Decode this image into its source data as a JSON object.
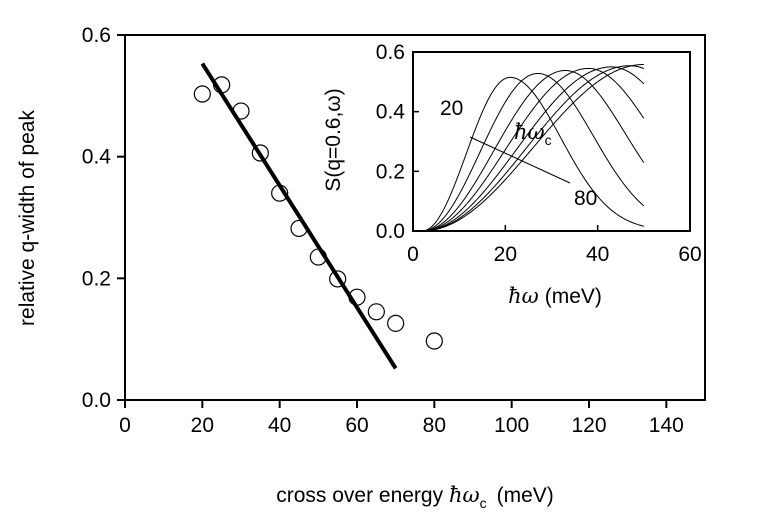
{
  "chart_data": [
    {
      "name": "main",
      "type": "scatter",
      "title": "",
      "xlabel": {
        "text": "cross over energy ",
        "symbol": "ħω",
        "subscript": "c",
        "unit": "(meV)"
      },
      "ylabel": "relative q-width of peak",
      "xlim": [
        0,
        150
      ],
      "ylim": [
        0,
        0.6
      ],
      "xticks": [
        0,
        20,
        40,
        60,
        80,
        100,
        120,
        140
      ],
      "yticks": [
        0.0,
        0.2,
        0.4,
        0.6
      ],
      "xtick_labels": [
        "0",
        "20",
        "40",
        "60",
        "80",
        "100",
        "120",
        "140"
      ],
      "ytick_labels": [
        "0.0",
        "0.2",
        "0.4",
        "0.6"
      ],
      "series": [
        {
          "name": "data",
          "kind": "open-circles",
          "x": [
            20,
            25,
            30,
            35,
            40,
            45,
            50,
            55,
            60,
            65,
            70,
            80
          ],
          "y": [
            0.503,
            0.518,
            0.475,
            0.406,
            0.34,
            0.282,
            0.235,
            0.199,
            0.169,
            0.145,
            0.126,
            0.097
          ]
        },
        {
          "name": "linear fit",
          "kind": "thick-line",
          "x": [
            20,
            70
          ],
          "y": [
            0.553,
            0.052
          ]
        }
      ]
    },
    {
      "name": "inset",
      "type": "line",
      "title": "",
      "xlabel": {
        "symbol": "ħω",
        "unit": "(meV)"
      },
      "ylabel": "S(q=0.6,ω)",
      "xlim": [
        0,
        60
      ],
      "ylim": [
        0,
        0.6
      ],
      "xticks": [
        0,
        20,
        40,
        60
      ],
      "yticks": [
        0.0,
        0.2,
        0.4,
        0.6
      ],
      "xtick_labels": [
        "0",
        "20",
        "40",
        "60"
      ],
      "ytick_labels": [
        "0.0",
        "0.2",
        "0.4",
        "0.6"
      ],
      "curve_range": [
        0,
        50
      ],
      "series": [
        {
          "name": "ħωc = 20",
          "peak_x": 21,
          "peak_y": 0.515,
          "width": 11
        },
        {
          "name": "ħωc = 30",
          "peak_x": 27,
          "peak_y": 0.528,
          "width": 12
        },
        {
          "name": "ħωc = 40",
          "peak_x": 33,
          "peak_y": 0.538,
          "width": 13
        },
        {
          "name": "ħωc = 50",
          "peak_x": 38,
          "peak_y": 0.545,
          "width": 14
        },
        {
          "name": "ħωc = 60",
          "peak_x": 43,
          "peak_y": 0.55,
          "width": 15
        },
        {
          "name": "ħωc = 70",
          "peak_x": 47,
          "peak_y": 0.554,
          "width": 16
        },
        {
          "name": "ħωc = 80",
          "peak_x": 50,
          "peak_y": 0.558,
          "width": 17
        }
      ],
      "annotations": {
        "start_label": "20",
        "end_label": "80",
        "param_symbol": "ħω",
        "param_subscript": "c"
      }
    }
  ]
}
